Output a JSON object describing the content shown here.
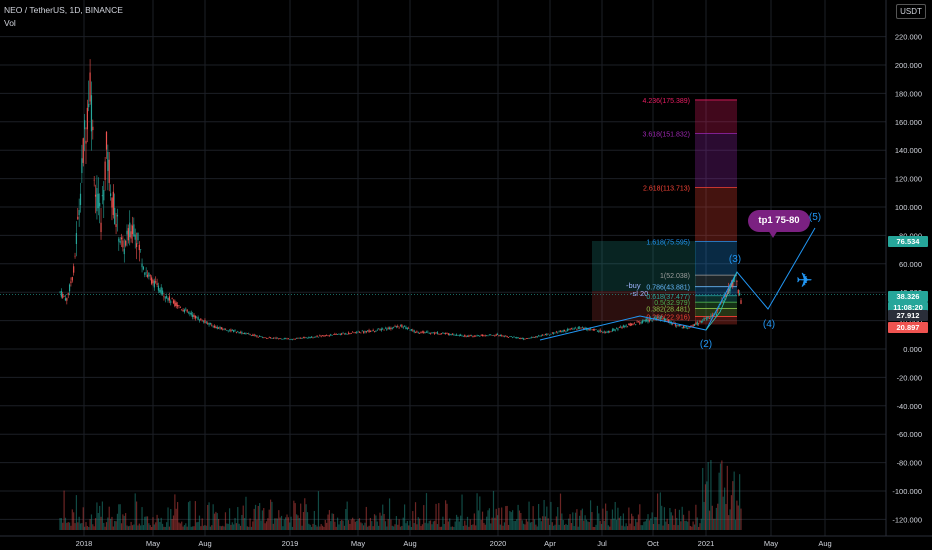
{
  "header": {
    "symbol": "NEO / TetherUS, 1D, BINANCE",
    "volume_label": "Vol",
    "currency": "USDT"
  },
  "colors": {
    "background": "#000000",
    "grid": "#1c1f26",
    "axis_text": "#d1d4dc",
    "candle_up": "#26a69a",
    "candle_down": "#ef5350",
    "wave_line": "#2196f3",
    "tp_bubble": "#7b2181"
  },
  "price_axis": {
    "top_label": "2",
    "ticks": [
      "220.000",
      "200.000",
      "180.000",
      "160.000",
      "140.000",
      "120.000",
      "100.000",
      "80.000",
      "60.000",
      "40.000",
      "20.000",
      "0.000",
      "-20.000",
      "-40.000",
      "-60.000",
      "-80.000",
      "-100.000",
      "-120.000"
    ],
    "badges": [
      {
        "value": "76.534",
        "color": "#26a69a"
      },
      {
        "value": "38.326",
        "color": "#26a69a"
      },
      {
        "value": "11:08:20",
        "color": "#26a69a"
      },
      {
        "value": "27.912",
        "color": "#2a2e39"
      },
      {
        "value": "20.897",
        "color": "#ef5350"
      }
    ]
  },
  "time_axis": {
    "ticks": [
      "2018",
      "May",
      "Aug",
      "2019",
      "May",
      "Aug",
      "2020",
      "Apr",
      "Jul",
      "Oct",
      "2021",
      "May",
      "Aug"
    ]
  },
  "fib_levels": [
    {
      "label": "4.236(175.389)",
      "color": "#e91e63",
      "value": 175.389
    },
    {
      "label": "3.618(151.832)",
      "color": "#9c27b0",
      "value": 151.832
    },
    {
      "label": "2.618(113.713)",
      "color": "#f44336",
      "value": 113.713
    },
    {
      "label": "1.618(75.595)",
      "color": "#2196f3",
      "value": 75.595
    },
    {
      "label": "1(52.038)",
      "color": "#9e9e9e",
      "value": 52.038
    },
    {
      "label": "0.786(43.881)",
      "color": "#64b5f6",
      "value": 43.881
    },
    {
      "label": "0.618(37.477)",
      "color": "#26a69a",
      "value": 37.477
    },
    {
      "label": "0.5(32.979)",
      "color": "#4caf50",
      "value": 32.979
    },
    {
      "label": "0.382(28.481)",
      "color": "#8bc34a",
      "value": 28.481
    },
    {
      "label": "0.236(22.916)",
      "color": "#f44336",
      "value": 22.916
    }
  ],
  "position_tool": {
    "buy_label": "-buy",
    "sl_label": "-sl 20"
  },
  "wave_labels": [
    "(2)",
    "(3)",
    "(4)",
    "(5)"
  ],
  "annotations": {
    "tp_text": "tp1 75-80",
    "plane_icon": "airplane-icon"
  }
}
